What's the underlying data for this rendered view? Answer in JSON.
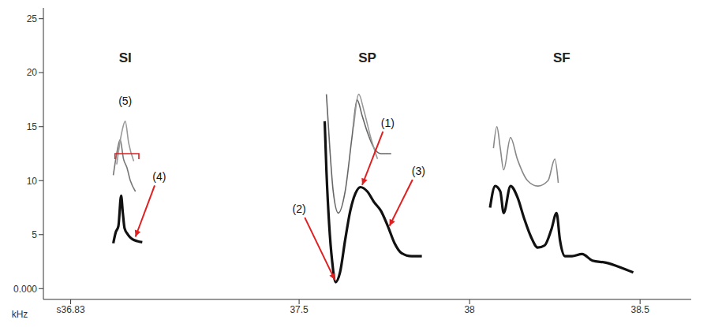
{
  "chart_data": {
    "type": "line",
    "y_label": "kHz",
    "xlim": [
      36.75,
      38.65
    ],
    "ylim": [
      -1,
      26
    ],
    "xticks": [
      {
        "value": 36.83,
        "label": "s36.83"
      },
      37.5,
      38,
      38.5
    ],
    "yticks": [
      {
        "value": 0,
        "label": "0.000"
      },
      5,
      10,
      15,
      20,
      25
    ],
    "grid": false,
    "series": [
      {
        "color": "#111111",
        "x": [
          36.955,
          36.962,
          36.97,
          36.978,
          36.983,
          36.988,
          36.998,
          37.01,
          37.025,
          37.04
        ],
        "values": [
          4.2,
          5.2,
          5.8,
          8.6,
          7.0,
          5.6,
          5.0,
          4.6,
          4.4,
          4.3
        ]
      },
      {
        "color": "#777777",
        "x": [
          36.955,
          36.965,
          36.975,
          36.985,
          36.995,
          37.005,
          37.02
        ],
        "values": [
          10.5,
          12.5,
          13.8,
          12.0,
          11.2,
          10.0,
          9.0
        ]
      },
      {
        "color": "#999999",
        "x": [
          36.965,
          36.98,
          36.99,
          37.0,
          37.015
        ],
        "values": [
          11.5,
          14.5,
          15.5,
          13.5,
          11.8
        ]
      },
      {
        "color": "#111111",
        "x": [
          37.575,
          37.58,
          37.588,
          37.597,
          37.607,
          37.62,
          37.635,
          37.65,
          37.665,
          37.68,
          37.7,
          37.72,
          37.74,
          37.76,
          37.78,
          37.8,
          37.83,
          37.86
        ],
        "values": [
          15.5,
          11.0,
          6.0,
          2.5,
          0.6,
          1.5,
          4.5,
          7.2,
          8.8,
          9.4,
          9.0,
          8.0,
          7.2,
          5.8,
          4.2,
          3.3,
          3.0,
          3.0
        ]
      },
      {
        "color": "#666666",
        "x": [
          37.58,
          37.59,
          37.6,
          37.615,
          37.635,
          37.655,
          37.67,
          37.685,
          37.7,
          37.72,
          37.74,
          37.77
        ],
        "values": [
          18.0,
          13.0,
          9.0,
          7.0,
          9.0,
          14.0,
          17.5,
          16.0,
          14.5,
          13.0,
          12.5,
          12.5
        ]
      },
      {
        "color": "#999999",
        "x": [
          37.66,
          37.675,
          37.69,
          37.71,
          37.73
        ],
        "values": [
          15.0,
          18.0,
          16.5,
          14.0,
          12.0
        ]
      },
      {
        "color": "#111111",
        "x": [
          38.06,
          38.075,
          38.09,
          38.1,
          38.12,
          38.14,
          38.16,
          38.18,
          38.2,
          38.22,
          38.24,
          38.255,
          38.265,
          38.28,
          38.3,
          38.33,
          38.36,
          38.4,
          38.44,
          38.48
        ],
        "values": [
          7.5,
          9.5,
          9.0,
          7.0,
          9.5,
          8.5,
          6.5,
          4.8,
          3.8,
          4.0,
          5.5,
          7.0,
          4.5,
          3.0,
          3.0,
          3.2,
          2.6,
          2.4,
          2.0,
          1.5
        ]
      },
      {
        "color": "#888888",
        "x": [
          38.07,
          38.08,
          38.09,
          38.1,
          38.12,
          38.14,
          38.17,
          38.2,
          38.23,
          38.25,
          38.26
        ],
        "values": [
          13.0,
          15.0,
          13.0,
          11.0,
          14.0,
          12.0,
          10.0,
          9.5,
          10.0,
          12.0,
          9.8
        ]
      }
    ],
    "labels": [
      {
        "text": "SI",
        "x": 36.99,
        "y": 21
      },
      {
        "text": "SP",
        "x": 37.7,
        "y": 21
      },
      {
        "text": "SF",
        "x": 38.27,
        "y": 21
      }
    ],
    "annotations": [
      {
        "text": "(1)",
        "x": 37.76,
        "y": 15,
        "xy": [
          37.685,
          9.6
        ],
        "color": "#e02020"
      },
      {
        "text": "(2)",
        "x": 37.5,
        "y": 7,
        "xy": [
          37.605,
          0.8
        ],
        "color": "#e02020"
      },
      {
        "text": "(3)",
        "x": 37.85,
        "y": 10.5,
        "xy": [
          37.765,
          5.8
        ],
        "color": "#e02020"
      },
      {
        "text": "(4)",
        "x": 37.09,
        "y": 10,
        "xy": [
          37.02,
          4.8
        ],
        "color": "#e02020"
      },
      {
        "text": "(5)",
        "x": 36.99,
        "y": 17,
        "bracket": [
          36.96,
          37.03,
          12.5
        ],
        "color": "#e02020"
      }
    ]
  }
}
